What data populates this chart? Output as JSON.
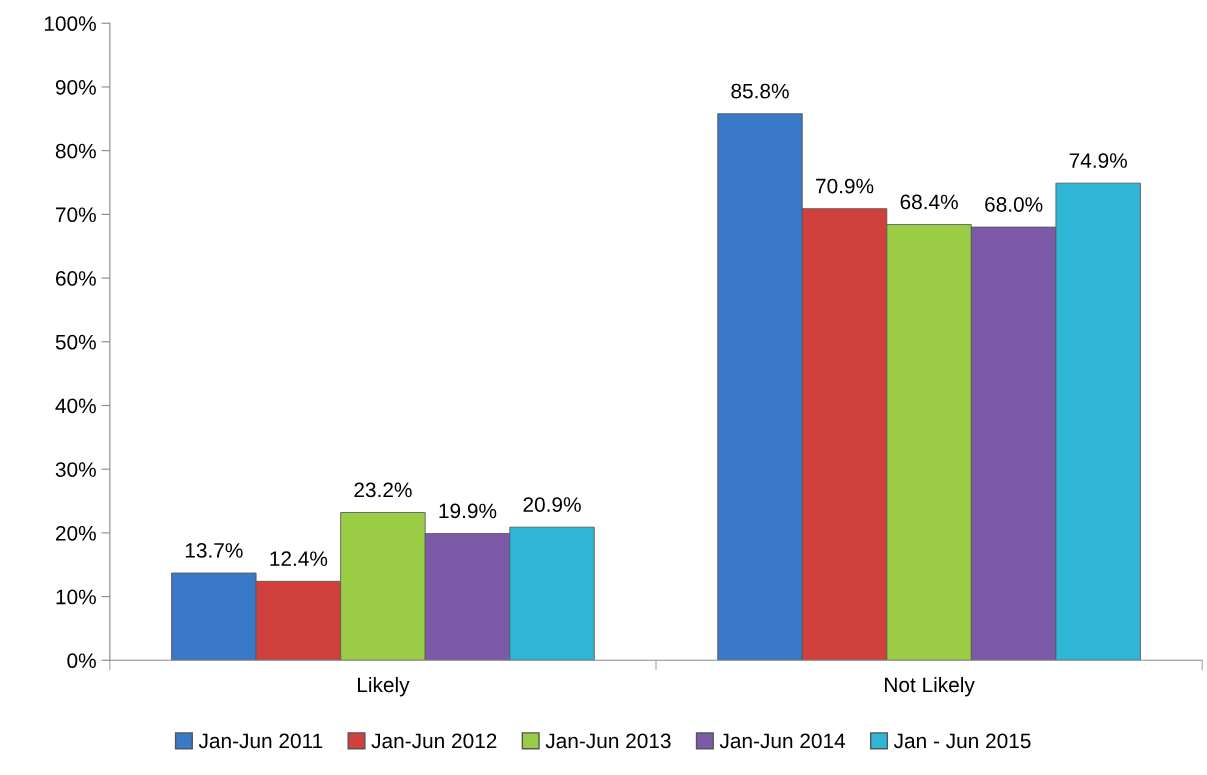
{
  "chart_data": {
    "type": "bar",
    "categories": [
      "Likely",
      "Not Likely"
    ],
    "series": [
      {
        "name": "Jan-Jun 2011",
        "color": "#3a78c8",
        "values": [
          13.7,
          85.8
        ],
        "value_labels": [
          "13.7%",
          "85.8%"
        ]
      },
      {
        "name": "Jan-Jun 2012",
        "color": "#d0403d",
        "values": [
          12.4,
          70.9
        ],
        "value_labels": [
          "12.4%",
          "70.9%"
        ]
      },
      {
        "name": "Jan-Jun 2013",
        "color": "#9acd45",
        "values": [
          23.2,
          68.4
        ],
        "value_labels": [
          "23.2%",
          "68.4%"
        ]
      },
      {
        "name": "Jan-Jun 2014",
        "color": "#7d5aa8",
        "values": [
          19.9,
          68.0
        ],
        "value_labels": [
          "19.9%",
          "68.0%"
        ]
      },
      {
        "name": "Jan - Jun 2015",
        "color": "#2fb5d6",
        "values": [
          20.9,
          74.9
        ],
        "value_labels": [
          "20.9%",
          "74.9%"
        ]
      }
    ],
    "ylim": [
      0,
      100
    ],
    "yticks": [
      {
        "value": 0,
        "label": "0%"
      },
      {
        "value": 10,
        "label": "10%"
      },
      {
        "value": 20,
        "label": "20%"
      },
      {
        "value": 30,
        "label": "30%"
      },
      {
        "value": 40,
        "label": "40%"
      },
      {
        "value": 50,
        "label": "50%"
      },
      {
        "value": 60,
        "label": "60%"
      },
      {
        "value": 70,
        "label": "70%"
      },
      {
        "value": 80,
        "label": "80%"
      },
      {
        "value": 90,
        "label": "90%"
      },
      {
        "value": 100,
        "label": "100%"
      }
    ],
    "grid": false,
    "legend": "bottom"
  }
}
